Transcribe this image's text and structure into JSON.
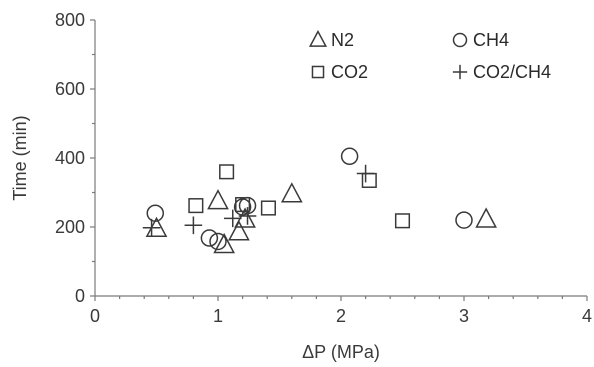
{
  "chart_data": {
    "type": "scatter",
    "xlabel": "ΔP (MPa)",
    "ylabel": "Time (min)",
    "xlim": [
      0,
      4
    ],
    "ylim": [
      0,
      800
    ],
    "x_ticks": [
      0,
      1,
      2,
      3,
      4
    ],
    "y_ticks": [
      0,
      200,
      400,
      600,
      800
    ],
    "x_tick_labels": [
      "0",
      "1",
      "2",
      "3",
      "4"
    ],
    "y_tick_labels": [
      "0",
      "200",
      "400",
      "600",
      "800"
    ],
    "legend_position": "top-right",
    "series": [
      {
        "name": "N2",
        "marker": "triangle",
        "points": [
          {
            "x": 0.5,
            "y": 195
          },
          {
            "x": 1.0,
            "y": 275
          },
          {
            "x": 1.05,
            "y": 148
          },
          {
            "x": 1.17,
            "y": 185
          },
          {
            "x": 1.22,
            "y": 222
          },
          {
            "x": 1.6,
            "y": 295
          },
          {
            "x": 3.18,
            "y": 222
          }
        ]
      },
      {
        "name": "CH4",
        "marker": "circle",
        "points": [
          {
            "x": 0.49,
            "y": 240
          },
          {
            "x": 0.93,
            "y": 168
          },
          {
            "x": 1.0,
            "y": 158
          },
          {
            "x": 1.2,
            "y": 258
          },
          {
            "x": 1.24,
            "y": 262
          },
          {
            "x": 2.07,
            "y": 405
          },
          {
            "x": 3.0,
            "y": 220
          }
        ]
      },
      {
        "name": "CO2",
        "marker": "square",
        "points": [
          {
            "x": 0.82,
            "y": 262
          },
          {
            "x": 1.07,
            "y": 360
          },
          {
            "x": 1.2,
            "y": 265
          },
          {
            "x": 1.41,
            "y": 255
          },
          {
            "x": 2.23,
            "y": 335
          },
          {
            "x": 2.5,
            "y": 218
          }
        ]
      },
      {
        "name": "CO2/CH4",
        "marker": "plus",
        "points": [
          {
            "x": 0.46,
            "y": 198
          },
          {
            "x": 0.8,
            "y": 205
          },
          {
            "x": 1.12,
            "y": 225
          },
          {
            "x": 1.24,
            "y": 232
          },
          {
            "x": 2.2,
            "y": 355
          }
        ]
      }
    ]
  }
}
